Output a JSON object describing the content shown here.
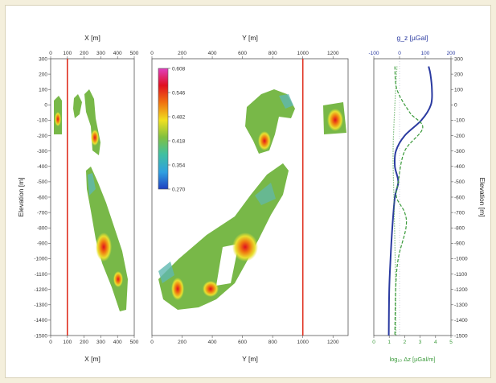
{
  "chart_data": [
    {
      "type": "heatmap",
      "panel": "x-section",
      "xlabel_top": "X [m]",
      "xlabel_bottom": "X [m]",
      "ylabel": "Elevation [m]",
      "xticks": [
        0,
        100,
        200,
        300,
        400,
        500
      ],
      "xlim": [
        0,
        500
      ],
      "ylim": [
        -1500,
        300
      ],
      "yticks": [
        300,
        200,
        100,
        0,
        -100,
        -200,
        -300,
        -400,
        -500,
        -600,
        -700,
        -800,
        -900,
        -1000,
        -1100,
        -1200,
        -1300,
        -1400,
        -1500
      ],
      "marker_x": 100
    },
    {
      "type": "heatmap",
      "panel": "y-section",
      "xlabel_top": "Y [m]",
      "xlabel_bottom": "Y [m]",
      "xticks": [
        0,
        200,
        400,
        600,
        800,
        1000,
        1200
      ],
      "xlim": [
        0,
        1300
      ],
      "ylim": [
        -1500,
        300
      ],
      "marker_x": 1000,
      "colorbar": {
        "ticks": [
          "0.608",
          "0.546",
          "0.482",
          "0.418",
          "0.354",
          "0.270"
        ],
        "colors": [
          "#e040c0",
          "#e01020",
          "#f07010",
          "#f0e020",
          "#80c040",
          "#40c0a0",
          "#30a0e0",
          "#2040c0"
        ]
      }
    },
    {
      "type": "line",
      "panel": "profile",
      "xlabel_top": "g_z [µGal]",
      "xlabel_bottom": "log₁₀ Δz [µGal/m]",
      "ylabel_right": "Elevation [m]",
      "xticks_top": [
        -100,
        0,
        100,
        200
      ],
      "xlim_top": [
        -100,
        200
      ],
      "xticks_bottom": [
        0,
        1,
        2,
        3,
        4,
        5
      ],
      "ylim": [
        -1500,
        300
      ],
      "series": [
        {
          "style": "solid",
          "color": "#2a3aa0",
          "points": [
            [
              113,
              250
            ],
            [
              120,
              200
            ],
            [
              126,
              100
            ],
            [
              122,
              0
            ],
            [
              85,
              -100
            ],
            [
              20,
              -200
            ],
            [
              -14,
              -300
            ],
            [
              -18,
              -400
            ],
            [
              -5,
              -500
            ],
            [
              -18,
              -600
            ],
            [
              -28,
              -800
            ],
            [
              -35,
              -1000
            ],
            [
              -40,
              -1200
            ],
            [
              -42,
              -1500
            ]
          ]
        },
        {
          "style": "dashed",
          "color": "#3a9a3a",
          "points": [
            [
              -18,
              250
            ],
            [
              -10,
              100
            ],
            [
              40,
              -50
            ],
            [
              90,
              -150
            ],
            [
              20,
              -300
            ],
            [
              -5,
              -500
            ],
            [
              -12,
              -600
            ],
            [
              20,
              -700
            ],
            [
              25,
              -800
            ],
            [
              -5,
              -1000
            ],
            [
              -15,
              -1200
            ],
            [
              -18,
              -1500
            ]
          ]
        },
        {
          "style": "dotted",
          "color": "#3a9a3a",
          "points": [
            [
              -10,
              250
            ],
            [
              -18,
              0
            ],
            [
              -25,
              -300
            ],
            [
              -22,
              -600
            ],
            [
              -18,
              -900
            ],
            [
              -15,
              -1200
            ],
            [
              -14,
              -1500
            ]
          ]
        }
      ]
    }
  ]
}
